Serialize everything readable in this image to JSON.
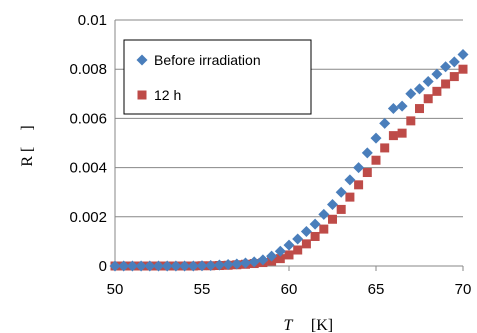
{
  "chart_data": {
    "type": "scatter",
    "xlabel_var": "T",
    "xlabel_unit": "[K]",
    "ylabel": "R [　]",
    "xlim": [
      50,
      70
    ],
    "ylim": [
      0,
      0.01
    ],
    "xticks": [
      "50",
      "55",
      "60",
      "65",
      "70"
    ],
    "yticks": [
      "0",
      "0.002",
      "0.004",
      "0.006",
      "0.008",
      "0.01"
    ],
    "grid": "horizontal",
    "legend_position": "top-left",
    "series": [
      {
        "name": "Before irradiation",
        "marker": "diamond",
        "color": "#4A7EBB",
        "x": [
          50.0,
          50.5,
          51.0,
          51.5,
          52.0,
          52.5,
          53.0,
          53.5,
          54.0,
          54.5,
          55.0,
          55.5,
          56.0,
          56.5,
          57.0,
          57.5,
          58.0,
          58.5,
          59.0,
          59.5,
          60.0,
          60.5,
          61.0,
          61.5,
          62.0,
          62.5,
          63.0,
          63.5,
          64.0,
          64.5,
          65.0,
          65.5,
          66.0,
          66.5,
          67.0,
          67.5,
          68.0,
          68.5,
          69.0,
          69.5,
          70.0
        ],
        "y": [
          0.0,
          0.0,
          0.0,
          0.0,
          0.0,
          0.0,
          0.0,
          0.0,
          0.0,
          0.0,
          1e-05,
          2e-05,
          4e-05,
          6e-05,
          8e-05,
          0.00012,
          0.00017,
          0.00025,
          0.0004,
          0.0006,
          0.00085,
          0.0011,
          0.0014,
          0.0017,
          0.0021,
          0.0025,
          0.003,
          0.0035,
          0.004,
          0.0046,
          0.0052,
          0.0058,
          0.0064,
          0.0065,
          0.007,
          0.0072,
          0.0075,
          0.0078,
          0.0081,
          0.0083,
          0.0086
        ]
      },
      {
        "name": "12 h",
        "marker": "square",
        "color": "#BE4B48",
        "x": [
          50.0,
          50.5,
          51.0,
          51.5,
          52.0,
          52.5,
          53.0,
          53.5,
          54.0,
          54.5,
          55.0,
          55.5,
          56.0,
          56.5,
          57.0,
          57.5,
          58.0,
          58.5,
          59.0,
          59.5,
          60.0,
          60.5,
          61.0,
          61.5,
          62.0,
          62.5,
          63.0,
          63.5,
          64.0,
          64.5,
          65.0,
          65.5,
          66.0,
          66.5,
          67.0,
          67.5,
          68.0,
          68.5,
          69.0,
          69.5,
          70.0
        ],
        "y": [
          0.0,
          0.0,
          0.0,
          0.0,
          0.0,
          0.0,
          0.0,
          0.0,
          0.0,
          0.0,
          1e-05,
          1e-05,
          2e-05,
          3e-05,
          5e-05,
          7e-05,
          0.0001,
          0.00014,
          0.0002,
          0.0003,
          0.00045,
          0.00065,
          0.0009,
          0.0012,
          0.0015,
          0.0019,
          0.0023,
          0.0028,
          0.0033,
          0.0038,
          0.0043,
          0.0048,
          0.0053,
          0.0054,
          0.0059,
          0.0064,
          0.0068,
          0.0071,
          0.0074,
          0.0077,
          0.008
        ]
      }
    ]
  }
}
